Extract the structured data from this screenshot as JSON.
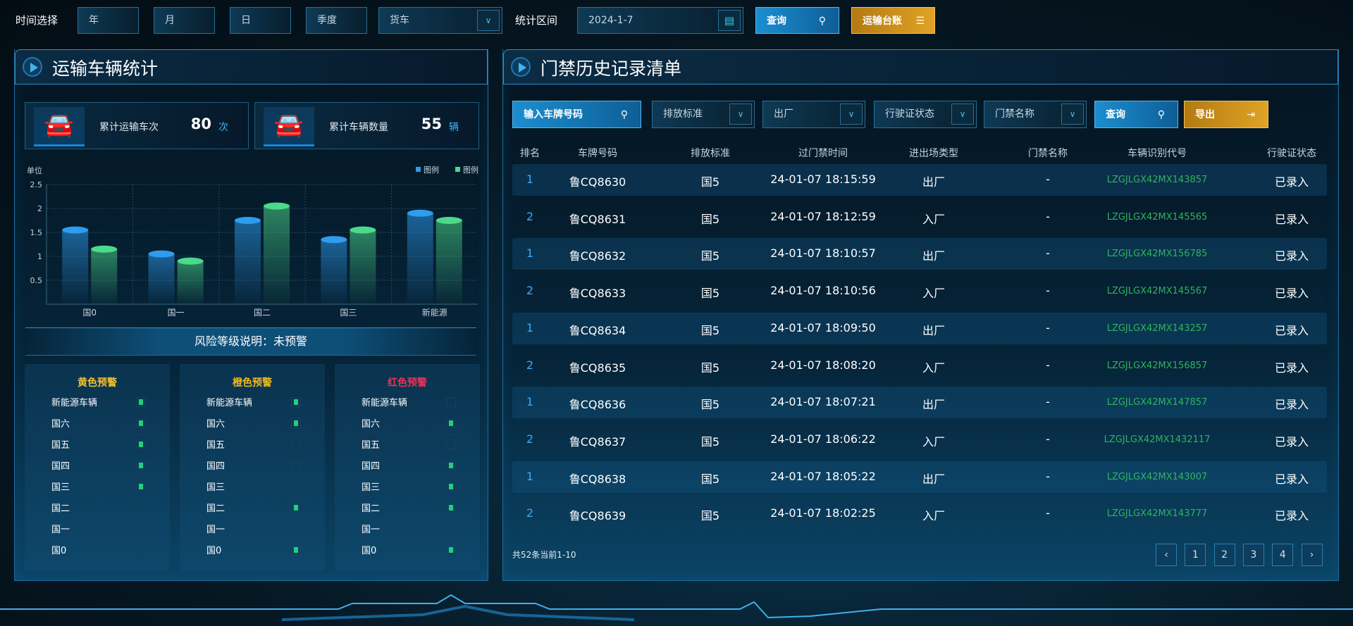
{
  "topbar": {
    "time_label": "时间选择",
    "year": "年",
    "month": "月",
    "day": "日",
    "quarter": "季度",
    "vehicle_type": "货车",
    "range_label": "统计区间",
    "date_value": "2024-1-7",
    "query_label": "查询",
    "ledger_label": "运输台账"
  },
  "left": {
    "title": "运输车辆统计",
    "stats": [
      {
        "label": "累计运输车次",
        "value": "80",
        "unit": "次"
      },
      {
        "label": "累计车辆数量",
        "value": "55",
        "unit": "辆"
      }
    ],
    "risk_text": "风险等级说明：未预警",
    "warnings": [
      {
        "title": "黄色预警",
        "color": "#f2c230",
        "items": [
          {
            "label": "新能源车辆",
            "on": true
          },
          {
            "label": "国六",
            "on": true
          },
          {
            "label": "国五",
            "on": true
          },
          {
            "label": "国四",
            "on": true
          },
          {
            "label": "国三",
            "on": true
          },
          {
            "label": "国二",
            "on": false
          },
          {
            "label": "国一",
            "on": false
          },
          {
            "label": "国0",
            "on": false
          }
        ]
      },
      {
        "title": "橙色预警",
        "color": "#f0b81c",
        "items": [
          {
            "label": "新能源车辆",
            "on": true
          },
          {
            "label": "国六",
            "on": true
          },
          {
            "label": "国五",
            "on": false
          },
          {
            "label": "国四",
            "on": false
          },
          {
            "label": "国三",
            "on": false
          },
          {
            "label": "国二",
            "on": true
          },
          {
            "label": "国一",
            "on": false
          },
          {
            "label": "国0",
            "on": true
          }
        ]
      },
      {
        "title": "红色预警",
        "color": "#e8345a",
        "items": [
          {
            "label": "新能源车辆",
            "on": false
          },
          {
            "label": "国六",
            "on": true
          },
          {
            "label": "国五",
            "on": false
          },
          {
            "label": "国四",
            "on": true
          },
          {
            "label": "国三",
            "on": true
          },
          {
            "label": "国二",
            "on": true
          },
          {
            "label": "国一",
            "on": false
          },
          {
            "label": "国0",
            "on": true
          }
        ]
      }
    ]
  },
  "chart_data": {
    "type": "bar",
    "ylabel": "单位",
    "categories": [
      "国0",
      "国一",
      "国二",
      "国三",
      "新能源"
    ],
    "series": [
      {
        "name": "图例",
        "color": "#2f9cf0",
        "values": [
          1.55,
          1.05,
          1.75,
          1.35,
          1.9
        ]
      },
      {
        "name": "图例",
        "color": "#4cd98a",
        "values": [
          1.15,
          0.9,
          2.05,
          1.55,
          1.75
        ]
      }
    ],
    "ylim": [
      0,
      2.5
    ],
    "yticks": [
      "0.5",
      "1",
      "1.5",
      "2",
      "2.5"
    ],
    "grid": true,
    "legend": "top-right"
  },
  "right": {
    "title": "门禁历史记录清单",
    "filters": {
      "plate_placeholder": "输入车牌号码",
      "emission": "排放标准",
      "direction": "出厂",
      "license_status": "行驶证状态",
      "gate_name": "门禁名称",
      "query_label": "查询",
      "export_label": "导出"
    },
    "columns": [
      "排名",
      "车牌号码",
      "排放标准",
      "过门禁时间",
      "进出场类型",
      "门禁名称",
      "车辆识别代号",
      "行驶证状态"
    ],
    "rows": [
      [
        "1",
        "鲁CQ8630",
        "国5",
        "24-01-07 18:15:59",
        "出厂",
        "-",
        "LZGJLGX42MX143857",
        "已录入"
      ],
      [
        "2",
        "鲁CQ8631",
        "国5",
        "24-01-07 18:12:59",
        "入厂",
        "-",
        "LZGJLGX42MX145565",
        "已录入"
      ],
      [
        "1",
        "鲁CQ8632",
        "国5",
        "24-01-07 18:10:57",
        "出厂",
        "-",
        "LZGJLGX42MX156785",
        "已录入"
      ],
      [
        "2",
        "鲁CQ8633",
        "国5",
        "24-01-07 18:10:56",
        "入厂",
        "-",
        "LZGJLGX42MX145567",
        "已录入"
      ],
      [
        "1",
        "鲁CQ8634",
        "国5",
        "24-01-07 18:09:50",
        "出厂",
        "-",
        "LZGJLGX42MX143257",
        "已录入"
      ],
      [
        "2",
        "鲁CQ8635",
        "国5",
        "24-01-07 18:08:20",
        "入厂",
        "-",
        "LZGJLGX42MX156857",
        "已录入"
      ],
      [
        "1",
        "鲁CQ8636",
        "国5",
        "24-01-07 18:07:21",
        "出厂",
        "-",
        "LZGJLGX42MX147857",
        "已录入"
      ],
      [
        "2",
        "鲁CQ8637",
        "国5",
        "24-01-07 18:06:22",
        "入厂",
        "-",
        "LZGJLGX42MX1432117",
        "已录入"
      ],
      [
        "1",
        "鲁CQ8638",
        "国5",
        "24-01-07 18:05:22",
        "出厂",
        "-",
        "LZGJLGX42MX143007",
        "已录入"
      ],
      [
        "2",
        "鲁CQ8639",
        "国5",
        "24-01-07 18:02:25",
        "入厂",
        "-",
        "LZGJLGX42MX143777",
        "已录入"
      ]
    ],
    "footer_text": "共52条当前1-10",
    "pagination": {
      "prev": "‹",
      "pages": [
        "1",
        "2",
        "3",
        "4"
      ],
      "next": "›"
    }
  }
}
